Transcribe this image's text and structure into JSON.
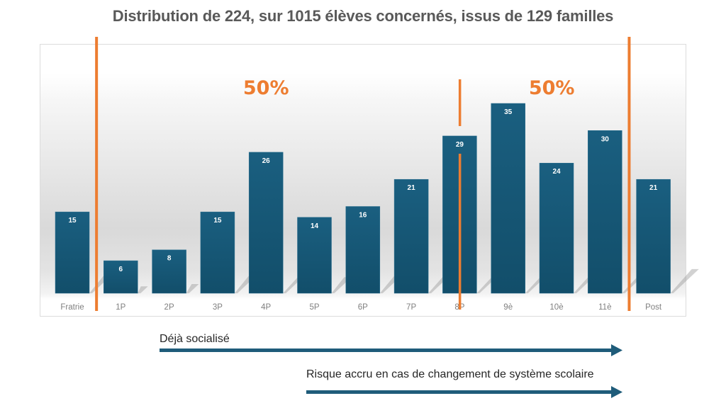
{
  "chart_data": {
    "type": "bar",
    "title": "Distribution de 224, sur 1015 élèves concernés, issus de 129 familles",
    "categories": [
      "Fratrie",
      "1P",
      "2P",
      "3P",
      "4P",
      "5P",
      "6P",
      "7P",
      "8P",
      "9è",
      "10è",
      "11è",
      "Post"
    ],
    "values": [
      15,
      6,
      8,
      15,
      26,
      14,
      16,
      21,
      29,
      35,
      24,
      30,
      21
    ],
    "xlabel": "",
    "ylabel": "",
    "ylim": [
      0,
      35
    ],
    "grid": false,
    "legend": "none",
    "annotations": [
      {
        "text": "50%",
        "position": "left-half"
      },
      {
        "text": "50%",
        "position": "right-half"
      }
    ],
    "dividers": [
      "between Fratrie and 1P",
      "at 8P",
      "between 11è and Post"
    ]
  },
  "colors": {
    "bar_top": "#1a5f80",
    "bar_bottom": "#124e6a",
    "accent_orange": "#ed7d31",
    "arrow": "#1f5c7a",
    "title": "#595959",
    "tick": "#7f7f7f"
  },
  "arrows": [
    {
      "label": "Déjà socialisé"
    },
    {
      "label": "Risque accru en cas de changement de système scolaire"
    }
  ]
}
